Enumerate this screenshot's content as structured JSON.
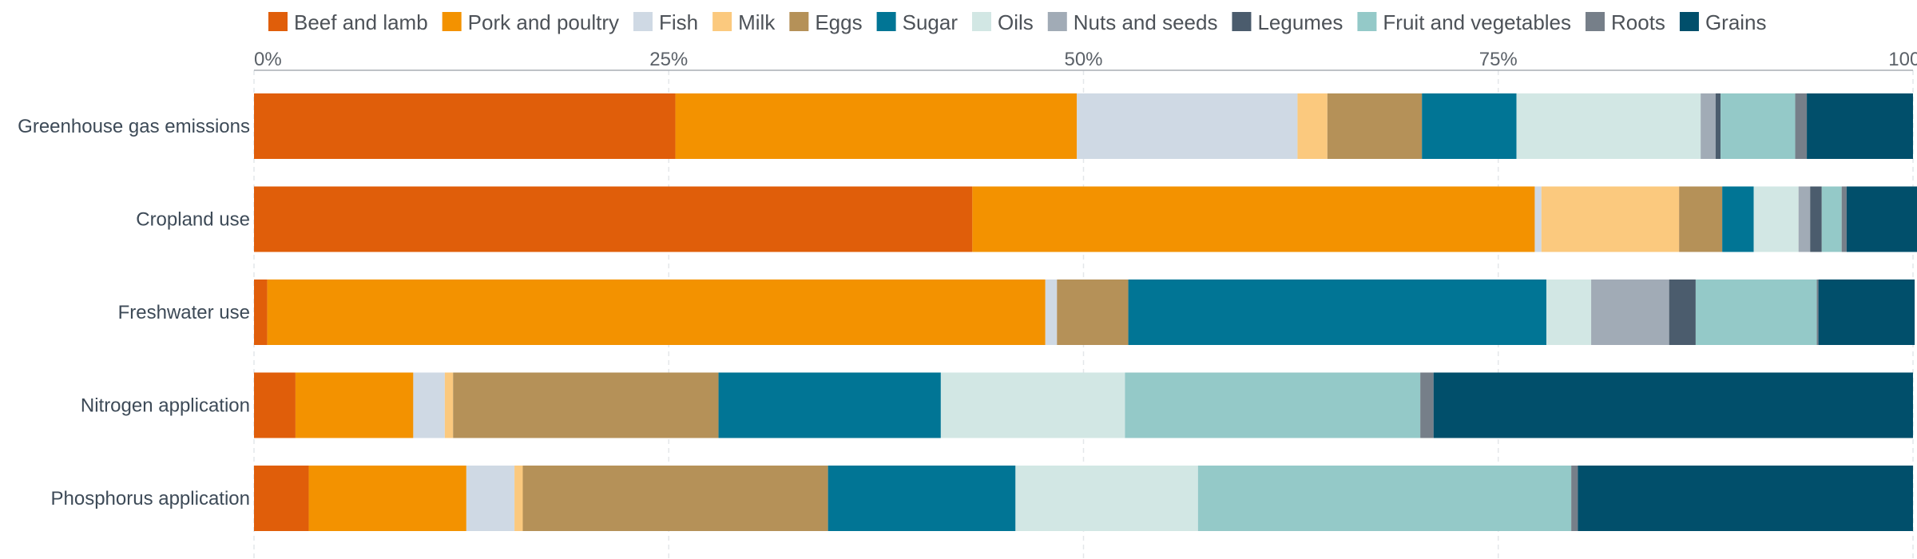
{
  "chart_data": {
    "type": "bar",
    "orientation": "horizontal",
    "stacked": true,
    "title": "",
    "xlabel": "",
    "ylabel": "",
    "xlim": [
      0,
      100
    ],
    "x_ticks": [
      0,
      25,
      50,
      75,
      100
    ],
    "x_tick_labels": [
      "0%",
      "25%",
      "50%",
      "75%",
      "100%"
    ],
    "grid": true,
    "legend_position": "top",
    "categories": [
      "Greenhouse gas emissions",
      "Cropland use",
      "Freshwater use",
      "Nitrogen application",
      "Phosphorus application"
    ],
    "series": [
      {
        "name": "Beef and lamb",
        "color": "#e05e0a",
        "values": [
          25.4,
          43.3,
          0.8,
          2.5,
          3.3
        ]
      },
      {
        "name": "Pork and poultry",
        "color": "#f39200",
        "values": [
          24.2,
          33.9,
          46.9,
          7.1,
          9.5
        ]
      },
      {
        "name": "Fish",
        "color": "#cfd9e4",
        "values": [
          13.3,
          0.4,
          0.7,
          1.9,
          2.9
        ]
      },
      {
        "name": "Milk",
        "color": "#fbc97e",
        "values": [
          1.8,
          8.3,
          0.0,
          0.5,
          0.5
        ]
      },
      {
        "name": "Eggs",
        "color": "#b59158",
        "values": [
          5.7,
          2.6,
          4.3,
          16.0,
          18.4
        ]
      },
      {
        "name": "Sugar",
        "color": "#017595",
        "values": [
          5.7,
          1.9,
          25.2,
          13.4,
          11.3
        ]
      },
      {
        "name": "Oils",
        "color": "#d2e7e4",
        "values": [
          11.1,
          2.7,
          2.7,
          11.1,
          11.0
        ]
      },
      {
        "name": "Nuts and seeds",
        "color": "#a1abb6",
        "values": [
          0.9,
          0.7,
          4.7,
          0.0,
          0.0
        ]
      },
      {
        "name": "Legumes",
        "color": "#4b5c6d",
        "values": [
          0.3,
          0.7,
          1.6,
          0.0,
          0.0
        ]
      },
      {
        "name": "Fruit and vegetables",
        "color": "#94c9c8",
        "values": [
          4.5,
          1.2,
          7.3,
          17.8,
          22.5
        ]
      },
      {
        "name": "Roots",
        "color": "#767f89",
        "values": [
          0.7,
          0.3,
          0.1,
          0.8,
          0.4
        ]
      },
      {
        "name": "Grains",
        "color": "#014f6b",
        "values": [
          6.4,
          4.4,
          5.8,
          28.9,
          20.2
        ]
      }
    ]
  }
}
